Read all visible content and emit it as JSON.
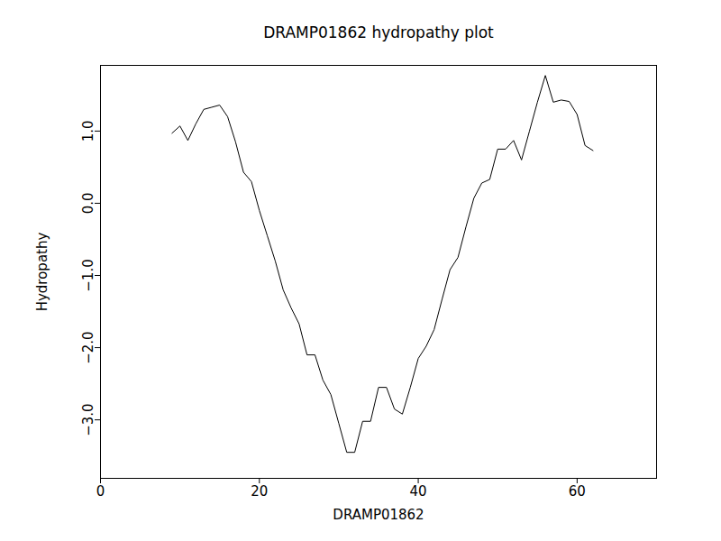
{
  "chart_data": {
    "type": "line",
    "title": "DRAMP01862 hydropathy plot",
    "x_label": "DRAMP01862",
    "y_label": "Hydropathy",
    "x": [
      9,
      10,
      11,
      12,
      13,
      14,
      15,
      16,
      17,
      18,
      19,
      20,
      21,
      22,
      23,
      24,
      25,
      26,
      27,
      28,
      29,
      30,
      31,
      32,
      33,
      34,
      35,
      36,
      37,
      38,
      39,
      40,
      41,
      42,
      43,
      44,
      45,
      46,
      47,
      48,
      49,
      50,
      51,
      52,
      53,
      54,
      55,
      56,
      57,
      58,
      59,
      60,
      61,
      62
    ],
    "values": [
      0.97,
      1.07,
      0.87,
      1.1,
      1.3,
      1.33,
      1.36,
      1.2,
      0.85,
      0.43,
      0.3,
      -0.1,
      -0.45,
      -0.8,
      -1.2,
      -1.45,
      -1.67,
      -2.1,
      -2.1,
      -2.45,
      -2.65,
      -3.05,
      -3.45,
      -3.45,
      -3.02,
      -3.02,
      -2.55,
      -2.55,
      -2.85,
      -2.92,
      -2.55,
      -2.15,
      -1.98,
      -1.75,
      -1.33,
      -0.92,
      -0.75,
      -0.33,
      0.07,
      0.28,
      0.33,
      0.75,
      0.75,
      0.87,
      0.6,
      1.0,
      1.4,
      1.77,
      1.4,
      1.43,
      1.41,
      1.23,
      0.8,
      0.73
    ],
    "color": "#000000",
    "xlim": [
      0,
      70
    ],
    "xticks": [
      0,
      20,
      40,
      60
    ],
    "ylim": [
      -3.81,
      1.91
    ],
    "yticks": [
      -3,
      -2,
      -1,
      0,
      1
    ],
    "grid": false
  }
}
